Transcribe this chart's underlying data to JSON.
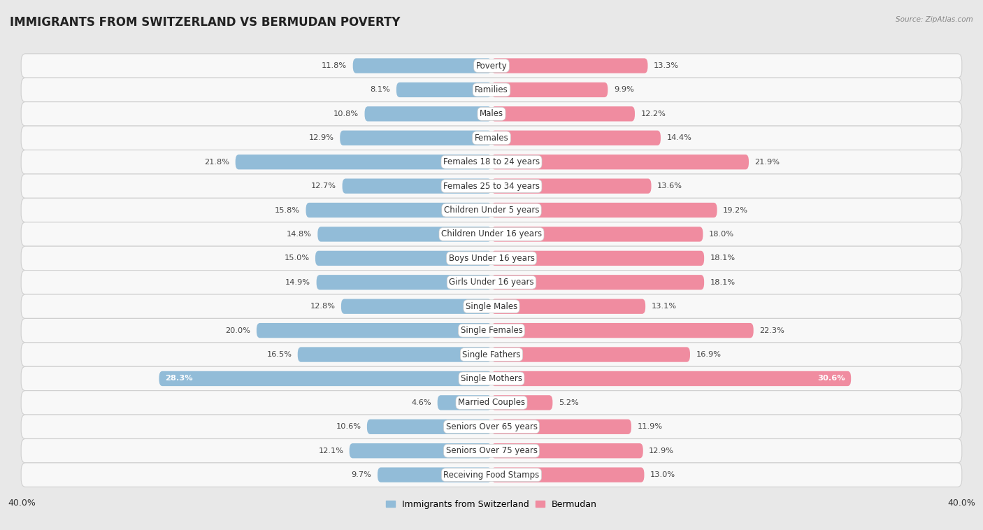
{
  "title": "IMMIGRANTS FROM SWITZERLAND VS BERMUDAN POVERTY",
  "source": "Source: ZipAtlas.com",
  "categories": [
    "Poverty",
    "Families",
    "Males",
    "Females",
    "Females 18 to 24 years",
    "Females 25 to 34 years",
    "Children Under 5 years",
    "Children Under 16 years",
    "Boys Under 16 years",
    "Girls Under 16 years",
    "Single Males",
    "Single Females",
    "Single Fathers",
    "Single Mothers",
    "Married Couples",
    "Seniors Over 65 years",
    "Seniors Over 75 years",
    "Receiving Food Stamps"
  ],
  "left_values": [
    11.8,
    8.1,
    10.8,
    12.9,
    21.8,
    12.7,
    15.8,
    14.8,
    15.0,
    14.9,
    12.8,
    20.0,
    16.5,
    28.3,
    4.6,
    10.6,
    12.1,
    9.7
  ],
  "right_values": [
    13.3,
    9.9,
    12.2,
    14.4,
    21.9,
    13.6,
    19.2,
    18.0,
    18.1,
    18.1,
    13.1,
    22.3,
    16.9,
    30.6,
    5.2,
    11.9,
    12.9,
    13.0
  ],
  "left_color": "#92bcd8",
  "right_color": "#f08ca0",
  "background_color": "#e8e8e8",
  "row_bg_color": "#f5f5f5",
  "row_alt_color": "#e8e8e8",
  "axis_limit": 40.0,
  "legend_left": "Immigrants from Switzerland",
  "legend_right": "Bermudan",
  "bar_height": 0.62,
  "title_fontsize": 12,
  "label_fontsize": 8.5,
  "value_fontsize": 8.2,
  "tick_fontsize": 9.0
}
